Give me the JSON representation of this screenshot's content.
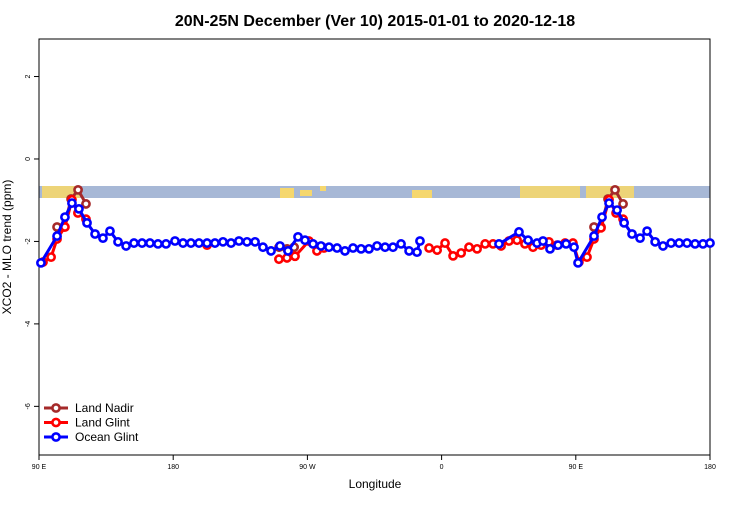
{
  "chart_data": {
    "type": "line",
    "title": "20N-25N December (Ver 10)   2015-01-01 to 2020-12-18",
    "x_label": "Longitude",
    "y_label": "XCO2 - MLO trend (ppm)",
    "xlim": [
      90,
      540
    ],
    "xticks": [
      {
        "value": 90,
        "label": "90 E"
      },
      180,
      {
        "value": 270,
        "label": "90 W"
      },
      {
        "value": 360,
        "label": "0"
      },
      {
        "value": 450,
        "label": "90 E"
      },
      {
        "value": 540,
        "label": "180"
      }
    ],
    "ylim": [
      -7.18,
      2.91
    ],
    "yticks": [
      -6,
      -4,
      -2,
      0,
      2
    ],
    "legend": "bottom-left",
    "series": [
      {
        "name": "Land Nadir",
        "color": "#a52a2a",
        "x": [
          102.1,
          106.8,
          111.5,
          116.2,
          121.5,
          null,
          251.0,
          256.4,
          261.1,
          null,
          462.2,
          466.9,
          471.6,
          476.3,
          481.7
        ],
        "values": [
          -1.65,
          -1.65,
          -0.97,
          -0.75,
          -1.09,
          null,
          -2.14,
          -2.18,
          -2.14,
          null,
          -1.65,
          -1.65,
          -0.97,
          -0.75,
          -1.09
        ]
      },
      {
        "name": "Land Glint",
        "color": "#ff0000",
        "x": [
          92.7,
          98.1,
          102.1,
          107.4,
          112.1,
          116.1,
          121.5,
          null,
          202.7,
          null,
          250.9,
          256.3,
          261.7,
          271.0,
          276.4,
          281.1,
          null,
          351.6,
          357.0,
          362.3,
          367.7,
          373.1,
          378.4,
          383.8,
          389.2,
          394.5,
          399.9,
          405.2,
          410.6,
          415.9,
          421.3,
          426.7,
          432.0,
          437.4,
          442.8,
          448.1,
          452.1,
          457.5,
          462.2,
          466.9,
          472.3,
          477.0,
          481.7
        ],
        "values": [
          -2.5,
          -2.38,
          -1.94,
          -1.65,
          -0.99,
          -1.31,
          -1.46,
          null,
          -2.09,
          null,
          -2.43,
          -2.4,
          -2.36,
          -1.99,
          -2.23,
          -2.16,
          null,
          -2.16,
          -2.21,
          -2.04,
          -2.35,
          -2.28,
          -2.14,
          -2.18,
          -2.06,
          -2.06,
          -2.11,
          -1.99,
          -1.97,
          -2.06,
          -2.14,
          -2.09,
          -2.01,
          -2.09,
          -2.04,
          -2.04,
          -2.5,
          -2.38,
          -1.94,
          -1.67,
          -0.99,
          -1.31,
          -1.46
        ]
      },
      {
        "name": "Ocean Glint",
        "color": "#0000ff",
        "x": [
          91.3,
          102.1,
          107.4,
          112.1,
          116.8,
          122.2,
          127.6,
          132.9,
          137.6,
          143.0,
          148.4,
          153.7,
          159.1,
          164.4,
          169.8,
          175.2,
          181.2,
          186.6,
          191.9,
          197.3,
          202.7,
          208.0,
          213.4,
          218.8,
          224.1,
          229.5,
          234.9,
          240.2,
          245.6,
          251.6,
          257.0,
          263.7,
          268.4,
          273.8,
          279.1,
          284.5,
          289.9,
          295.2,
          300.6,
          306.0,
          311.3,
          316.7,
          322.1,
          327.4,
          332.8,
          338.2,
          343.5,
          345.5,
          null,
          398.5,
          411.9,
          418.0,
          424.0,
          428.0,
          432.7,
          438.1,
          443.5,
          448.8,
          451.5,
          462.2,
          467.6,
          472.3,
          477.7,
          482.4,
          487.7,
          493.1,
          497.8,
          503.2,
          508.5,
          513.9,
          519.3,
          524.6,
          530.0,
          535.3,
          540.0
        ],
        "values": [
          -2.52,
          -1.87,
          -1.41,
          -1.07,
          -1.21,
          -1.55,
          -1.82,
          -1.92,
          -1.75,
          -2.01,
          -2.11,
          -2.04,
          -2.04,
          -2.04,
          -2.06,
          -2.06,
          -1.99,
          -2.04,
          -2.04,
          -2.04,
          -2.04,
          -2.04,
          -2.01,
          -2.04,
          -1.99,
          -2.01,
          -2.01,
          -2.14,
          -2.23,
          -2.11,
          -2.23,
          -1.89,
          -1.97,
          -2.06,
          -2.11,
          -2.14,
          -2.16,
          -2.23,
          -2.16,
          -2.18,
          -2.18,
          -2.11,
          -2.14,
          -2.14,
          -2.06,
          -2.23,
          -2.26,
          -1.99,
          null,
          -2.06,
          -1.77,
          -1.97,
          -2.04,
          -1.99,
          -2.18,
          -2.09,
          -2.06,
          -2.14,
          -2.52,
          -1.87,
          -1.41,
          -1.07,
          -1.24,
          -1.55,
          -1.82,
          -1.92,
          -1.75,
          -2.01,
          -2.11,
          -2.04,
          -2.04,
          -2.04,
          -2.06,
          -2.06,
          -2.04
        ]
      }
    ]
  }
}
